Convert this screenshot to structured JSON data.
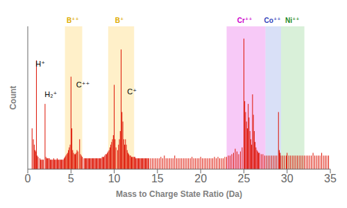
{
  "chart_data": {
    "type": "stem",
    "xlabel": "Mass to Charge State Ratio (Da)",
    "ylabel": "Count",
    "xlim": [
      0,
      35
    ],
    "ylim": [
      0,
      1.05
    ],
    "xticks": [
      0,
      5,
      10,
      15,
      20,
      25,
      30,
      35
    ],
    "yticks": [
      0,
      0.2,
      0.4,
      0.6,
      0.8,
      1.0
    ],
    "tick_labels": "x",
    "grid": false,
    "color": "#dd1100",
    "x": [
      0.5,
      0.65,
      0.75,
      0.85,
      0.95,
      1.0,
      1.1,
      1.2,
      1.4,
      1.5,
      1.6,
      1.7,
      1.8,
      2.0,
      2.1,
      2.2,
      2.3,
      2.4,
      2.5,
      2.6,
      2.7,
      2.8,
      2.9,
      3.0,
      3.1,
      3.2,
      3.3,
      3.4,
      3.5,
      3.6,
      3.7,
      3.8,
      3.9,
      4.0,
      4.1,
      4.2,
      4.3,
      4.4,
      4.5,
      4.6,
      4.7,
      4.8,
      4.9,
      5.0,
      5.1,
      5.2,
      5.3,
      5.4,
      5.5,
      5.6,
      5.7,
      5.8,
      6.0,
      6.1,
      6.2,
      6.3,
      6.5,
      6.6,
      6.7,
      6.8,
      6.9,
      7.0,
      7.1,
      7.2,
      7.3,
      7.4,
      7.5,
      7.6,
      7.7,
      7.8,
      7.9,
      8.0,
      8.1,
      8.2,
      8.3,
      8.4,
      8.5,
      8.6,
      8.7,
      8.8,
      8.9,
      9.0,
      9.1,
      9.2,
      9.3,
      9.4,
      9.5,
      9.6,
      9.7,
      9.8,
      9.9,
      10.0,
      10.1,
      10.2,
      10.4,
      10.5,
      10.6,
      10.7,
      10.8,
      10.9,
      11.0,
      11.1,
      11.2,
      11.3,
      11.4,
      11.5,
      11.6,
      11.7,
      11.8,
      11.9,
      12.0,
      12.1,
      12.2,
      12.3,
      12.4,
      12.5,
      12.6,
      12.7,
      12.8,
      12.9,
      13.0,
      13.1,
      13.2,
      13.3,
      13.4,
      13.5,
      13.6,
      13.7,
      13.8,
      13.9,
      14.0,
      14.2,
      14.4,
      14.6,
      14.8,
      15.0,
      15.2,
      15.4,
      15.6,
      15.8,
      16.0,
      16.2,
      16.4,
      16.6,
      16.8,
      17.0,
      17.2,
      17.4,
      17.6,
      17.8,
      18.0,
      18.2,
      18.4,
      18.6,
      18.8,
      19.0,
      19.2,
      19.4,
      19.6,
      19.8,
      20.0,
      20.2,
      20.4,
      20.6,
      20.8,
      21.0,
      21.2,
      21.4,
      21.6,
      21.8,
      22.0,
      22.2,
      22.4,
      22.6,
      22.8,
      23.0,
      23.2,
      23.4,
      23.6,
      23.8,
      24.0,
      24.2,
      24.4,
      24.6,
      24.8,
      25.0,
      25.1,
      25.2,
      25.3,
      25.4,
      25.5,
      25.6,
      25.7,
      25.8,
      25.9,
      26.0,
      26.1,
      26.2,
      26.3,
      26.4,
      26.5,
      26.6,
      26.7,
      26.8,
      27.0,
      27.2,
      27.4,
      27.6,
      27.8,
      28.0,
      28.2,
      28.4,
      28.6,
      28.8,
      29.0,
      29.1,
      29.2,
      29.3,
      29.5,
      29.7,
      29.9,
      30.0,
      30.2,
      30.4,
      30.6,
      30.8,
      31.0,
      31.2,
      31.4,
      31.6,
      31.8,
      32.0,
      32.2,
      32.4,
      32.6,
      32.8,
      33.0,
      33.2,
      33.4,
      33.6,
      33.8,
      34.0,
      34.2,
      34.4,
      34.6,
      34.8
    ],
    "values": [
      0.3,
      0.22,
      0.18,
      0.14,
      0.13,
      0.8,
      0.1,
      0.09,
      0.08,
      0.07,
      0.07,
      0.07,
      0.07,
      0.48,
      0.09,
      0.08,
      0.08,
      0.08,
      0.08,
      0.07,
      0.07,
      0.07,
      0.07,
      0.08,
      0.07,
      0.07,
      0.07,
      0.08,
      0.07,
      0.07,
      0.07,
      0.07,
      0.07,
      0.07,
      0.07,
      0.08,
      0.09,
      0.1,
      0.11,
      0.12,
      0.14,
      0.16,
      0.18,
      0.68,
      0.3,
      0.14,
      0.12,
      0.11,
      0.11,
      0.12,
      0.14,
      0.13,
      0.22,
      0.11,
      0.1,
      0.09,
      0.08,
      0.08,
      0.08,
      0.08,
      0.08,
      0.08,
      0.08,
      0.08,
      0.08,
      0.08,
      0.08,
      0.08,
      0.08,
      0.08,
      0.08,
      0.08,
      0.08,
      0.08,
      0.08,
      0.08,
      0.08,
      0.09,
      0.09,
      0.09,
      0.1,
      0.11,
      0.11,
      0.12,
      0.13,
      0.14,
      0.16,
      0.18,
      0.2,
      0.22,
      0.25,
      0.62,
      0.22,
      0.16,
      0.14,
      0.18,
      0.22,
      0.28,
      0.88,
      0.42,
      0.35,
      0.22,
      0.18,
      0.22,
      0.18,
      0.14,
      0.12,
      0.11,
      0.1,
      0.1,
      0.09,
      0.09,
      0.09,
      0.09,
      0.09,
      0.08,
      0.08,
      0.08,
      0.08,
      0.08,
      0.08,
      0.08,
      0.08,
      0.08,
      0.08,
      0.08,
      0.08,
      0.08,
      0.08,
      0.08,
      0.08,
      0.08,
      0.08,
      0.08,
      0.08,
      0.08,
      0.08,
      0.09,
      0.08,
      0.1,
      0.08,
      0.08,
      0.08,
      0.08,
      0.08,
      0.1,
      0.08,
      0.08,
      0.08,
      0.08,
      0.08,
      0.08,
      0.08,
      0.08,
      0.08,
      0.09,
      0.08,
      0.08,
      0.08,
      0.08,
      0.09,
      0.08,
      0.08,
      0.08,
      0.08,
      0.08,
      0.08,
      0.08,
      0.09,
      0.08,
      0.09,
      0.08,
      0.08,
      0.08,
      0.09,
      0.09,
      0.1,
      0.1,
      0.11,
      0.12,
      0.15,
      0.13,
      0.11,
      0.13,
      0.16,
      0.96,
      0.5,
      0.42,
      0.35,
      0.3,
      0.48,
      0.38,
      0.28,
      0.22,
      0.18,
      0.55,
      0.4,
      0.28,
      0.2,
      0.16,
      0.14,
      0.13,
      0.12,
      0.12,
      0.11,
      0.11,
      0.1,
      0.1,
      0.1,
      0.1,
      0.1,
      0.1,
      0.1,
      0.1,
      0.42,
      0.14,
      0.12,
      0.1,
      0.1,
      0.1,
      0.1,
      0.12,
      0.1,
      0.1,
      0.1,
      0.1,
      0.1,
      0.1,
      0.1,
      0.1,
      0.1,
      0.1,
      0.1,
      0.1,
      0.1,
      0.1,
      0.12,
      0.1,
      0.1,
      0.1,
      0.1,
      0.12,
      0.1,
      0.1,
      0.1,
      0.1
    ],
    "highlight_regions": [
      {
        "xmin": 4.3,
        "xmax": 6.3,
        "color": "#ffdd88",
        "label": "B⁺⁺",
        "label_color": "#ddaa00",
        "label_x": 5.2
      },
      {
        "xmin": 9.3,
        "xmax": 12.3,
        "color": "#ffdd88",
        "label": "B⁺",
        "label_color": "#ddaa00",
        "label_x": 10.6
      },
      {
        "xmin": 23.0,
        "xmax": 27.5,
        "color": "#ee88ee",
        "label": "Cr⁺⁺",
        "label_color": "#cc00cc",
        "label_x": 25.1
      },
      {
        "xmin": 27.5,
        "xmax": 29.3,
        "color": "#aabbee",
        "label": "Co⁺⁺",
        "label_color": "#3344bb",
        "label_x": 28.3
      },
      {
        "xmin": 29.3,
        "xmax": 32.0,
        "color": "#aaddaa",
        "label": "Ni⁺⁺",
        "label_color": "#228822",
        "label_x": 30.6
      }
    ],
    "annotations": [
      {
        "text": "H⁺",
        "x": 0.9,
        "y": 0.8
      },
      {
        "text": "H₂⁺",
        "x": 1.95,
        "y": 0.58
      },
      {
        "text": "C⁺⁺",
        "x": 5.6,
        "y": 0.65
      },
      {
        "text": "C⁺",
        "x": 11.5,
        "y": 0.6
      }
    ]
  }
}
